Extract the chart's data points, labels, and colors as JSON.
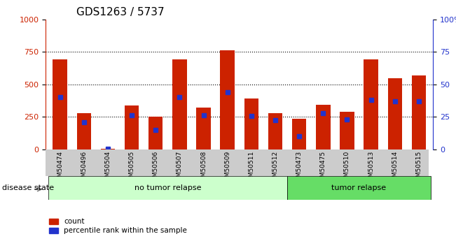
{
  "title": "GDS1263 / 5737",
  "samples": [
    "GSM50474",
    "GSM50496",
    "GSM50504",
    "GSM50505",
    "GSM50506",
    "GSM50507",
    "GSM50508",
    "GSM50509",
    "GSM50511",
    "GSM50512",
    "GSM50473",
    "GSM50475",
    "GSM50510",
    "GSM50513",
    "GSM50514",
    "GSM50515"
  ],
  "count_values": [
    690,
    280,
    5,
    340,
    250,
    690,
    320,
    760,
    390,
    280,
    235,
    345,
    290,
    690,
    545,
    570
  ],
  "percentile_values": [
    400,
    210,
    5,
    260,
    150,
    400,
    260,
    440,
    255,
    225,
    100,
    280,
    230,
    380,
    370,
    370
  ],
  "no_tumor_count": 10,
  "tumor_count": 6,
  "no_tumor_label": "no tumor relapse",
  "tumor_label": "tumor relapse",
  "disease_state_label": "disease state",
  "bar_color": "#cc2200",
  "dot_color": "#2233cc",
  "left_axis_color": "#cc2200",
  "right_axis_color": "#2233cc",
  "ylim": [
    0,
    1000
  ],
  "right_ylim": [
    0,
    100
  ],
  "yticks_left": [
    0,
    250,
    500,
    750,
    1000
  ],
  "yticks_right": [
    0,
    25,
    50,
    75,
    100
  ],
  "grid_values": [
    250,
    500,
    750
  ],
  "no_tumor_bg": "#ccffcc",
  "tumor_bg": "#66dd66",
  "xlabel_bg": "#cccccc",
  "bar_width": 0.6
}
